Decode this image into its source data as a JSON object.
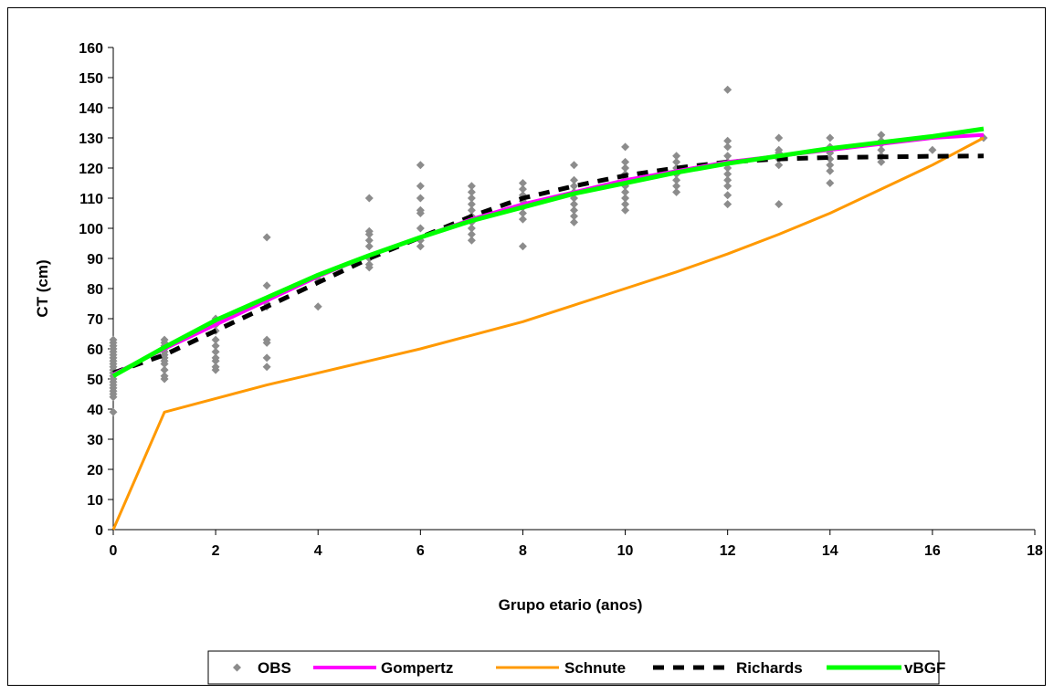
{
  "chart_data": {
    "type": "scatter",
    "xlabel": "Grupo etario (anos)",
    "ylabel": "CT (cm)",
    "xlim": [
      0,
      18
    ],
    "ylim": [
      0,
      160
    ],
    "xticks": [
      0,
      2,
      4,
      6,
      8,
      10,
      12,
      14,
      16,
      18
    ],
    "yticks": [
      0,
      10,
      20,
      30,
      40,
      50,
      60,
      70,
      80,
      90,
      100,
      110,
      120,
      130,
      140,
      150,
      160
    ],
    "grid": false,
    "legend_position": "bottom",
    "series": [
      {
        "name": "OBS",
        "kind": "scatter",
        "color": "#8c8c8c",
        "points": [
          [
            0,
            39
          ],
          [
            0,
            44
          ],
          [
            0,
            45
          ],
          [
            0,
            46
          ],
          [
            0,
            47
          ],
          [
            0,
            48
          ],
          [
            0,
            49
          ],
          [
            0,
            50
          ],
          [
            0,
            51
          ],
          [
            0,
            52
          ],
          [
            0,
            53
          ],
          [
            0,
            54
          ],
          [
            0,
            55
          ],
          [
            0,
            56
          ],
          [
            0,
            57
          ],
          [
            0,
            58
          ],
          [
            0,
            59
          ],
          [
            0,
            60
          ],
          [
            0,
            61
          ],
          [
            0,
            62
          ],
          [
            0,
            63
          ],
          [
            1,
            50
          ],
          [
            1,
            51
          ],
          [
            1,
            53
          ],
          [
            1,
            55
          ],
          [
            1,
            56
          ],
          [
            1,
            57
          ],
          [
            1,
            58
          ],
          [
            1,
            59
          ],
          [
            1,
            60
          ],
          [
            1,
            61
          ],
          [
            1,
            62
          ],
          [
            1,
            63
          ],
          [
            2,
            53
          ],
          [
            2,
            54
          ],
          [
            2,
            56
          ],
          [
            2,
            57
          ],
          [
            2,
            59
          ],
          [
            2,
            61
          ],
          [
            2,
            63
          ],
          [
            2,
            66
          ],
          [
            2,
            68
          ],
          [
            2,
            70
          ],
          [
            3,
            54
          ],
          [
            3,
            57
          ],
          [
            3,
            62
          ],
          [
            3,
            63
          ],
          [
            3,
            74
          ],
          [
            3,
            75
          ],
          [
            3,
            81
          ],
          [
            3,
            97
          ],
          [
            4,
            74
          ],
          [
            4,
            83
          ],
          [
            5,
            87
          ],
          [
            5,
            88
          ],
          [
            5,
            90
          ],
          [
            5,
            94
          ],
          [
            5,
            96
          ],
          [
            5,
            98
          ],
          [
            5,
            99
          ],
          [
            5,
            110
          ],
          [
            6,
            94
          ],
          [
            6,
            96
          ],
          [
            6,
            100
          ],
          [
            6,
            105
          ],
          [
            6,
            106
          ],
          [
            6,
            110
          ],
          [
            6,
            114
          ],
          [
            6,
            121
          ],
          [
            7,
            96
          ],
          [
            7,
            98
          ],
          [
            7,
            100
          ],
          [
            7,
            102
          ],
          [
            7,
            104
          ],
          [
            7,
            106
          ],
          [
            7,
            108
          ],
          [
            7,
            110
          ],
          [
            7,
            112
          ],
          [
            7,
            114
          ],
          [
            8,
            94
          ],
          [
            8,
            103
          ],
          [
            8,
            105
          ],
          [
            8,
            107
          ],
          [
            8,
            109
          ],
          [
            8,
            111
          ],
          [
            8,
            113
          ],
          [
            8,
            115
          ],
          [
            9,
            102
          ],
          [
            9,
            104
          ],
          [
            9,
            106
          ],
          [
            9,
            108
          ],
          [
            9,
            110
          ],
          [
            9,
            112
          ],
          [
            9,
            114
          ],
          [
            9,
            116
          ],
          [
            9,
            121
          ],
          [
            10,
            106
          ],
          [
            10,
            108
          ],
          [
            10,
            110
          ],
          [
            10,
            112
          ],
          [
            10,
            114
          ],
          [
            10,
            116
          ],
          [
            10,
            118
          ],
          [
            10,
            120
          ],
          [
            10,
            122
          ],
          [
            10,
            127
          ],
          [
            11,
            112
          ],
          [
            11,
            114
          ],
          [
            11,
            116
          ],
          [
            11,
            118
          ],
          [
            11,
            120
          ],
          [
            11,
            122
          ],
          [
            11,
            124
          ],
          [
            12,
            108
          ],
          [
            12,
            111
          ],
          [
            12,
            114
          ],
          [
            12,
            116
          ],
          [
            12,
            118
          ],
          [
            12,
            120
          ],
          [
            12,
            122
          ],
          [
            12,
            124
          ],
          [
            12,
            127
          ],
          [
            12,
            129
          ],
          [
            12,
            146
          ],
          [
            13,
            108
          ],
          [
            13,
            121
          ],
          [
            13,
            123
          ],
          [
            13,
            125
          ],
          [
            13,
            126
          ],
          [
            13,
            130
          ],
          [
            14,
            115
          ],
          [
            14,
            119
          ],
          [
            14,
            121
          ],
          [
            14,
            123
          ],
          [
            14,
            125
          ],
          [
            14,
            127
          ],
          [
            14,
            130
          ],
          [
            15,
            122
          ],
          [
            15,
            124
          ],
          [
            15,
            126
          ],
          [
            15,
            128
          ],
          [
            15,
            129
          ],
          [
            15,
            131
          ],
          [
            16,
            126
          ],
          [
            17,
            130
          ]
        ]
      },
      {
        "name": "Gompertz",
        "kind": "line",
        "color": "#ff00ff",
        "x": [
          0,
          1,
          2,
          3,
          4,
          5,
          6,
          7,
          8,
          9,
          10,
          11,
          12,
          13,
          14,
          15,
          16,
          17
        ],
        "values": [
          51.5,
          60,
          68,
          76,
          84,
          91,
          97,
          103,
          108,
          112,
          116,
          119,
          122,
          124,
          126,
          128,
          130,
          131
        ]
      },
      {
        "name": "Schnute",
        "kind": "line",
        "color": "#ff9900",
        "x": [
          0,
          1,
          2,
          3,
          4,
          5,
          6,
          7,
          8,
          9,
          10,
          11,
          12,
          13,
          14,
          15,
          16,
          17
        ],
        "values": [
          0,
          39,
          43.5,
          48,
          52,
          56,
          60,
          64.5,
          69,
          74.5,
          80,
          85.5,
          91.5,
          98,
          105,
          113,
          121,
          130
        ]
      },
      {
        "name": "Richards",
        "kind": "line",
        "dash": "dashed",
        "color": "#000000",
        "x": [
          0,
          1,
          2,
          3,
          4,
          5,
          6,
          7,
          8,
          9,
          10,
          11,
          12,
          13,
          14,
          15,
          16,
          17
        ],
        "values": [
          52,
          58,
          66,
          74,
          82,
          90,
          97,
          104,
          110,
          114,
          117.5,
          120,
          122,
          123,
          123.5,
          123.7,
          123.9,
          124
        ]
      },
      {
        "name": "vBGF",
        "kind": "line",
        "color": "#00ff00",
        "x": [
          0,
          1,
          2,
          3,
          4,
          5,
          6,
          7,
          8,
          9,
          10,
          11,
          12,
          13,
          14,
          15,
          16,
          17
        ],
        "values": [
          51,
          60.5,
          69.5,
          77,
          84.5,
          91,
          97,
          102.5,
          107,
          111.5,
          115,
          118.5,
          121.5,
          124,
          126.5,
          128.5,
          130.5,
          133
        ]
      }
    ]
  }
}
